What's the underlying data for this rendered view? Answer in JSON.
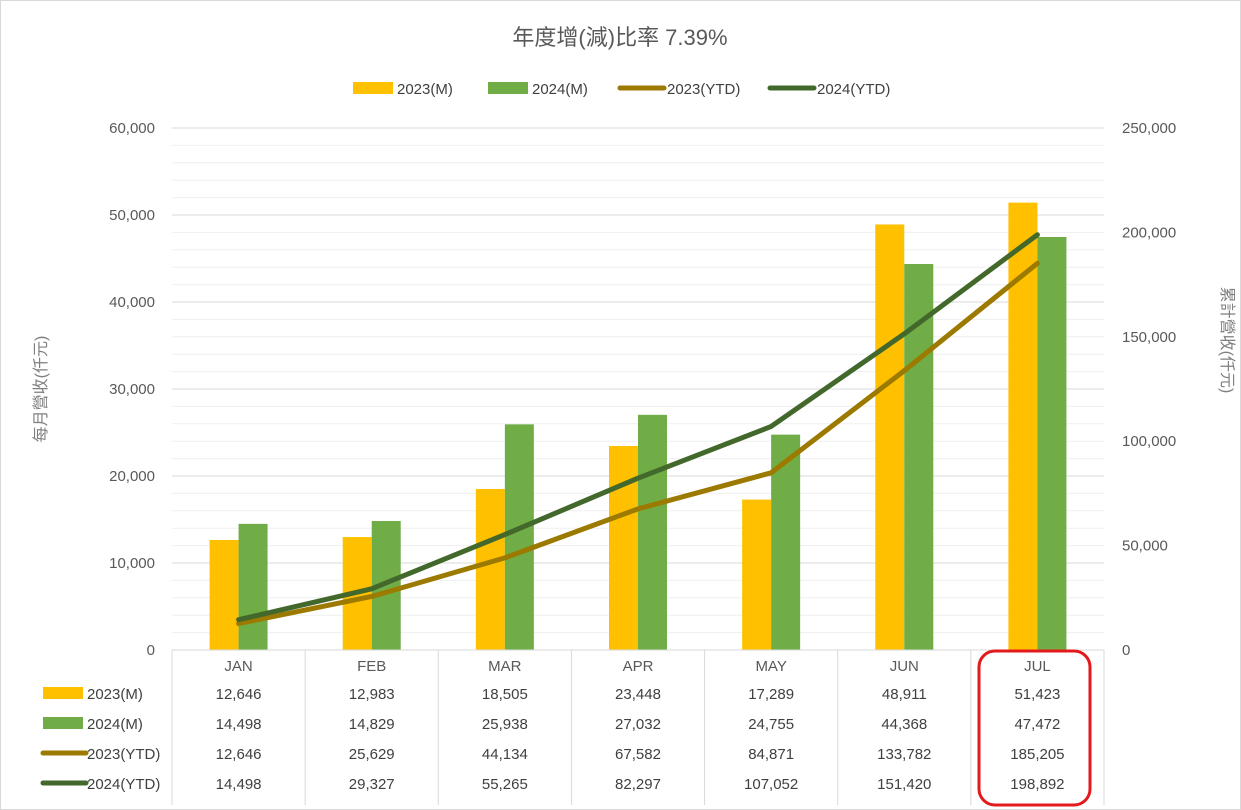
{
  "chart_data": {
    "type": "bar",
    "title": "年度增(減)比率 7.39%",
    "categories": [
      "JAN",
      "FEB",
      "MAR",
      "APR",
      "MAY",
      "JUN",
      "JUL"
    ],
    "ylabel": "每月營收(仟元)",
    "y2label": "累計營收(仟元)",
    "ylim": [
      0,
      60000
    ],
    "y2lim": [
      0,
      250000
    ],
    "yticks": [
      "0",
      "10,000",
      "20,000",
      "30,000",
      "40,000",
      "50,000",
      "60,000"
    ],
    "y2ticks": [
      "0",
      "50,000",
      "100,000",
      "150,000",
      "200,000",
      "250,000"
    ],
    "grid": true,
    "legend_position": "top",
    "highlighted_category": "JUL",
    "highlight_color": "#e31a1c",
    "series": [
      {
        "name": "2023(M)",
        "kind": "bar",
        "axis": "left",
        "color": "#ffc000",
        "values": [
          12646,
          12983,
          18505,
          23448,
          17289,
          48911,
          51423
        ],
        "labels": [
          "12,646",
          "12,983",
          "18,505",
          "23,448",
          "17,289",
          "48,911",
          "51,423"
        ]
      },
      {
        "name": "2024(M)",
        "kind": "bar",
        "axis": "left",
        "color": "#70ad47",
        "values": [
          14498,
          14829,
          25938,
          27032,
          24755,
          44368,
          47472
        ],
        "labels": [
          "14,498",
          "14,829",
          "25,938",
          "27,032",
          "24,755",
          "44,368",
          "47,472"
        ]
      },
      {
        "name": "2023(YTD)",
        "kind": "line",
        "axis": "right",
        "color": "#9c7a00",
        "values": [
          12646,
          25629,
          44134,
          67582,
          84871,
          133782,
          185205
        ],
        "labels": [
          "12,646",
          "25,629",
          "44,134",
          "67,582",
          "84,871",
          "133,782",
          "185,205"
        ]
      },
      {
        "name": "2024(YTD)",
        "kind": "line",
        "axis": "right",
        "color": "#43682b",
        "values": [
          14498,
          29327,
          55265,
          82297,
          107052,
          151420,
          198892
        ],
        "labels": [
          "14,498",
          "29,327",
          "55,265",
          "82,297",
          "107,052",
          "151,420",
          "198,892"
        ]
      }
    ]
  }
}
